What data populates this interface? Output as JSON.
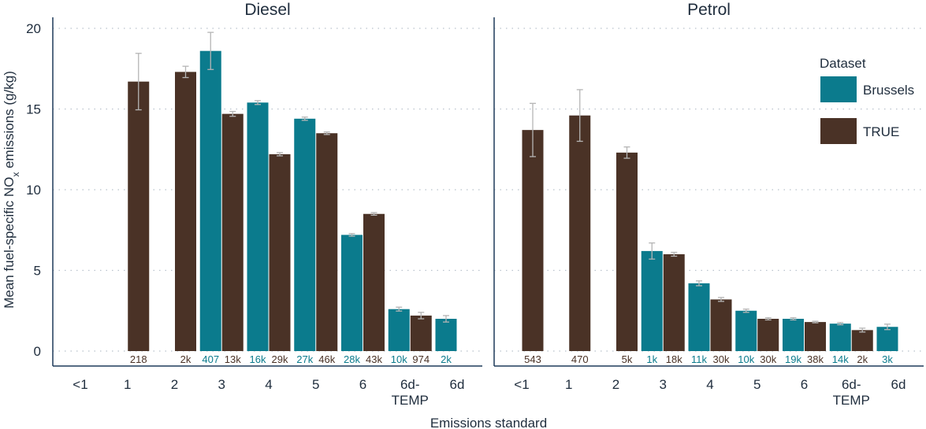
{
  "chart_data": {
    "type": "bar",
    "colors": {
      "Brussels": "#0b7b8d",
      "TRUE": "#4a3226",
      "axis": "#1f3a5a",
      "grid": "#b9c2cc",
      "errorbar": "#b5b5b5"
    },
    "ylabel": "Mean fuel-specific NO",
    "ylabel_sub": "x",
    "ylabel_suffix": " emissions (g/kg)",
    "xlabel": "Emissions standard",
    "ylim": [
      0,
      20
    ],
    "yticks": [
      0,
      5,
      10,
      15,
      20
    ],
    "grid": "horizontal dotted",
    "legend": {
      "title": "Dataset",
      "position": "top-right",
      "entries": [
        "Brussels",
        "TRUE"
      ]
    },
    "categories": [
      "<1",
      "1",
      "2",
      "3",
      "4",
      "5",
      "6",
      "6d-\nTEMP",
      "6d"
    ],
    "panels": [
      {
        "title": "Diesel",
        "series": [
          {
            "name": "Brussels",
            "values": [
              null,
              null,
              null,
              18.6,
              15.4,
              14.4,
              7.2,
              2.6,
              2.0
            ],
            "errors": [
              null,
              null,
              null,
              1.15,
              0.12,
              0.1,
              0.08,
              0.12,
              0.2
            ],
            "counts": [
              null,
              null,
              null,
              "407",
              "16k",
              "27k",
              "28k",
              "10k",
              "2k"
            ]
          },
          {
            "name": "TRUE",
            "values": [
              null,
              16.7,
              17.3,
              14.7,
              12.2,
              13.5,
              8.5,
              2.2,
              null
            ],
            "errors": [
              null,
              1.75,
              0.35,
              0.15,
              0.1,
              0.08,
              0.08,
              0.2,
              null
            ],
            "counts": [
              null,
              "218",
              "2k",
              "13k",
              "29k",
              "46k",
              "43k",
              "974",
              null
            ]
          }
        ]
      },
      {
        "title": "Petrol",
        "series": [
          {
            "name": "Brussels",
            "values": [
              null,
              null,
              null,
              6.2,
              4.2,
              2.5,
              2.0,
              1.7,
              1.5
            ],
            "errors": [
              null,
              null,
              null,
              0.5,
              0.15,
              0.1,
              0.07,
              0.07,
              0.17
            ],
            "counts": [
              null,
              null,
              null,
              "1k",
              "11k",
              "10k",
              "19k",
              "14k",
              "3k"
            ]
          },
          {
            "name": "TRUE",
            "values": [
              13.7,
              14.6,
              12.3,
              6.0,
              3.2,
              2.0,
              1.8,
              1.3,
              null
            ],
            "errors": [
              1.65,
              1.6,
              0.35,
              0.12,
              0.12,
              0.07,
              0.05,
              0.12,
              null
            ],
            "counts": [
              "543",
              "470",
              "5k",
              "18k",
              "30k",
              "30k",
              "38k",
              "2k",
              null
            ]
          }
        ]
      }
    ]
  }
}
